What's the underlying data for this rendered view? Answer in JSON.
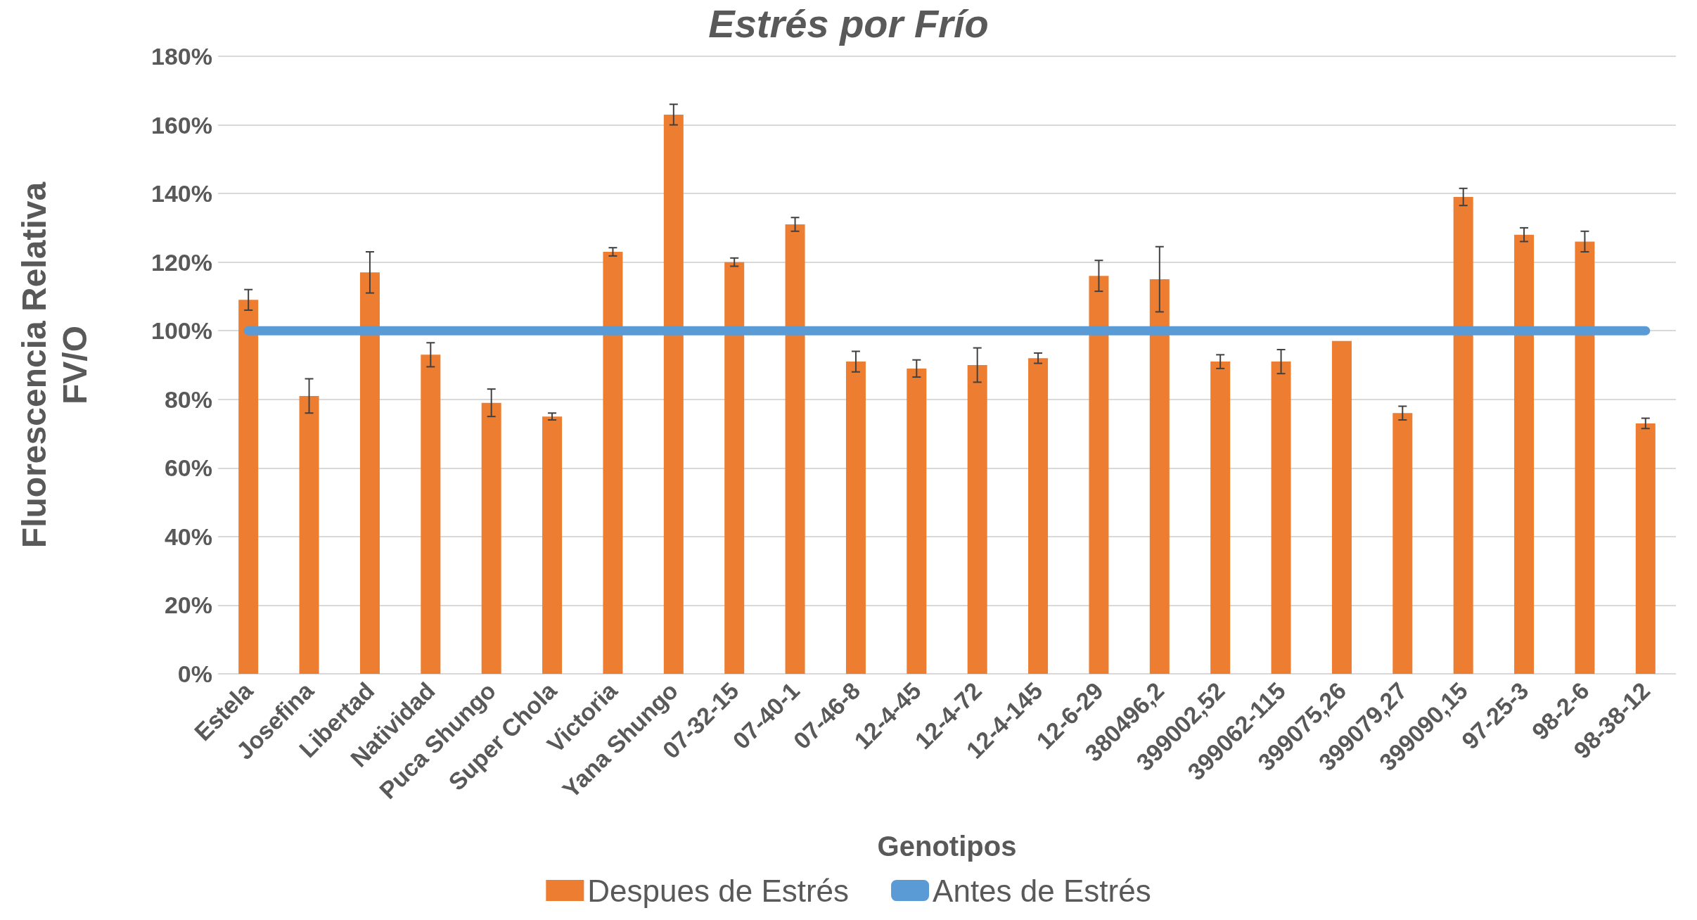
{
  "chart_data": {
    "type": "bar",
    "title": "Estrés por Frío",
    "xlabel": "Genotipos",
    "ylabel": "Fluorescencia Relativa\nFV/O",
    "categories": [
      "Estela",
      "Josefina",
      "Libertad",
      "Natividad",
      "Puca Shungo",
      "Super Chola",
      "Victoria",
      "Yana Shungo",
      "07-32-15",
      "07-40-1",
      "07-46-8",
      "12-4-45",
      "12-4-72",
      "12-4-145",
      "12-6-29",
      "380496,2",
      "399002,52",
      "399062-115",
      "399075,26",
      "399079,27",
      "399090,15",
      "97-25-3",
      "98-2-6",
      "98-38-12"
    ],
    "series": [
      {
        "name": "Despues de Estrés",
        "color": "#ed7d31",
        "values": [
          109,
          81,
          117,
          93,
          79,
          75,
          123,
          163,
          120,
          131,
          91,
          89,
          90,
          92,
          116,
          115,
          91,
          91,
          97,
          76,
          139,
          128,
          126,
          73
        ],
        "errors": [
          3,
          5,
          6,
          3.5,
          4,
          1,
          1.2,
          3,
          1.2,
          2,
          3,
          2.5,
          5,
          1.5,
          4.5,
          9.5,
          2,
          3.5,
          null,
          2,
          2.5,
          2,
          3,
          1.5
        ]
      },
      {
        "name": "Antes de Estrés",
        "type": "line",
        "color": "#5b9bd5",
        "marker": "none",
        "values": [
          100,
          100,
          100,
          100,
          100,
          100,
          100,
          100,
          100,
          100,
          100,
          100,
          100,
          100,
          100,
          100,
          100,
          100,
          100,
          100,
          100,
          100,
          100,
          100
        ]
      }
    ],
    "ylim": [
      0,
      180
    ],
    "yticks": [
      {
        "value": 0,
        "label": "0%"
      },
      {
        "value": 20,
        "label": "20%"
      },
      {
        "value": 40,
        "label": "40%"
      },
      {
        "value": 60,
        "label": "60%"
      },
      {
        "value": 80,
        "label": "80%"
      },
      {
        "value": 100,
        "label": "100%"
      },
      {
        "value": 120,
        "label": "120%"
      },
      {
        "value": 140,
        "label": "140%"
      },
      {
        "value": 160,
        "label": "160%"
      },
      {
        "value": 180,
        "label": "180%"
      }
    ],
    "grid": "y",
    "legend": "bottom"
  }
}
